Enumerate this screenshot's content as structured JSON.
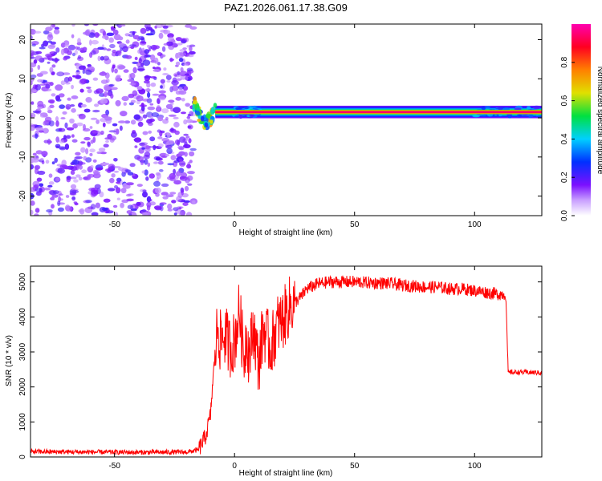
{
  "figure_title": "PAZ1.2026.061.17.38.G09",
  "chart_data": [
    {
      "type": "heatmap",
      "title": "PAZ1.2026.061.17.38.G09",
      "xlabel": "Height of straight line (km)",
      "ylabel": "Frequency (Hz)",
      "xlim": [
        -85,
        128
      ],
      "ylim": [
        -25,
        24
      ],
      "xticks": [
        -50,
        0,
        50,
        100
      ],
      "yticks": [
        -20,
        -10,
        0,
        10,
        20
      ],
      "colorbar": {
        "label": "Normalized spectral amplitude",
        "range": [
          0.0,
          1.0
        ],
        "ticks": [
          0.0,
          0.2,
          0.4,
          0.6,
          0.8
        ],
        "colormap": [
          "#ffffff",
          "#7b10ff",
          "#0030ff",
          "#00d0ff",
          "#00e040",
          "#e0e000",
          "#ff8000",
          "#ff0020",
          "#ff00b0"
        ]
      },
      "regions": [
        {
          "name": "noise",
          "x_range": [
            -85,
            -17
          ],
          "freq_range": [
            -25,
            24
          ],
          "amplitude": [
            0.0,
            0.3
          ]
        },
        {
          "name": "transition",
          "x_range": [
            -17,
            -8
          ],
          "freq_center": 3,
          "amplitude": [
            0.3,
            0.8
          ]
        },
        {
          "name": "signal_band",
          "x_range": [
            -8,
            128
          ],
          "freq_center": 1.5,
          "amplitude": [
            0.8,
            1.0
          ]
        }
      ]
    },
    {
      "type": "line",
      "title": "",
      "xlabel": "Height of straight line (km)",
      "ylabel": "SNR (10 * v/v)",
      "xlim": [
        -85,
        128
      ],
      "ylim": [
        0,
        5450
      ],
      "xticks": [
        -50,
        0,
        50,
        100
      ],
      "yticks": [
        0,
        1000,
        2000,
        3000,
        4000,
        5000
      ],
      "color": "#ff0000",
      "series": [
        {
          "name": "SNR",
          "x": [
            -85,
            -60,
            -40,
            -20,
            -15,
            -12,
            -10,
            -9,
            -7,
            -6,
            -4,
            -2,
            0,
            2,
            4,
            5,
            6,
            8,
            10,
            12,
            15,
            18,
            20,
            23,
            25,
            28,
            30,
            35,
            40,
            45,
            50,
            55,
            60,
            65,
            70,
            75,
            80,
            85,
            90,
            95,
            100,
            105,
            110,
            113,
            114,
            115,
            120,
            125,
            128
          ],
          "values": [
            150,
            140,
            130,
            140,
            200,
            600,
            1200,
            2200,
            3800,
            3300,
            3500,
            3150,
            3300,
            4200,
            2800,
            3600,
            2900,
            3700,
            2600,
            3700,
            3100,
            3800,
            3900,
            4300,
            4400,
            4600,
            4800,
            4950,
            5000,
            5000,
            5000,
            4980,
            4970,
            4950,
            4900,
            4880,
            4850,
            4850,
            4800,
            4800,
            4750,
            4700,
            4650,
            4650,
            2400,
            2420,
            2420,
            2410,
            2400
          ]
        }
      ]
    }
  ]
}
